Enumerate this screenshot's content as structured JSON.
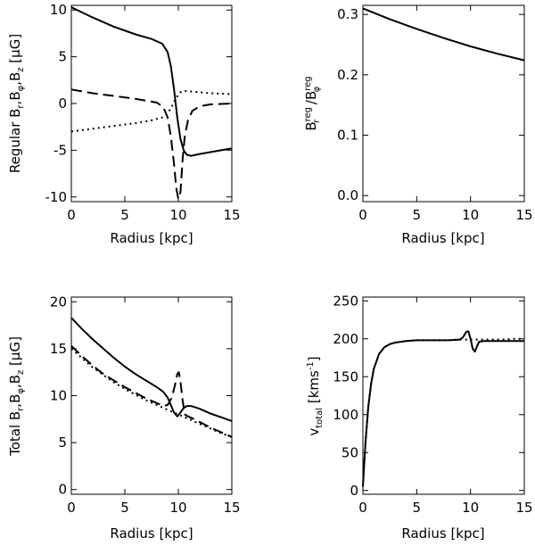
{
  "chart_data": [
    {
      "type": "line",
      "id": "regular-fields",
      "xlabel": "Radius [kpc]",
      "ylabel": "Regular B_r,B_φ,B_z [μG]",
      "xlim": [
        0,
        15
      ],
      "ylim": [
        -10.5,
        10.5
      ],
      "xticks": [
        0,
        5,
        10,
        15
      ],
      "yticks": [
        -10,
        -5,
        0,
        5,
        10
      ],
      "series": [
        {
          "name": "B_phi",
          "style": "solid",
          "x": [
            0,
            2,
            4,
            6,
            7.5,
            8.5,
            9.0,
            9.3,
            9.6,
            9.9,
            10.2,
            10.5,
            10.8,
            11.2,
            11.6,
            12,
            13,
            14,
            15
          ],
          "y": [
            10.3,
            9.2,
            8.2,
            7.4,
            6.9,
            6.4,
            5.5,
            4.0,
            1.5,
            -1.5,
            -3.8,
            -5.0,
            -5.5,
            -5.6,
            -5.5,
            -5.4,
            -5.2,
            -5.0,
            -4.8
          ]
        },
        {
          "name": "B_r",
          "style": "dashed",
          "x": [
            0,
            2,
            4,
            6,
            7,
            8,
            8.6,
            9.0,
            9.3,
            9.6,
            9.8,
            10.0,
            10.2,
            10.4,
            10.6,
            10.9,
            11.3,
            12,
            13,
            15
          ],
          "y": [
            1.5,
            1.1,
            0.8,
            0.5,
            0.3,
            0.1,
            -0.4,
            -1.5,
            -3.5,
            -6.5,
            -9.0,
            -10.2,
            -9.5,
            -6.0,
            -3.5,
            -1.8,
            -0.8,
            -0.3,
            -0.1,
            0.0
          ]
        },
        {
          "name": "B_z",
          "style": "dotted",
          "x": [
            0,
            2,
            4,
            6,
            7.5,
            8.5,
            9.0,
            9.4,
            9.8,
            10.2,
            10.5,
            11,
            12,
            13,
            14,
            15
          ],
          "y": [
            -3.0,
            -2.7,
            -2.4,
            -2.1,
            -1.8,
            -1.5,
            -1.1,
            -0.3,
            0.6,
            1.2,
            1.35,
            1.3,
            1.2,
            1.1,
            1.05,
            1.0
          ]
        }
      ]
    },
    {
      "type": "line",
      "id": "pitch-ratio",
      "xlabel": "Radius [kpc]",
      "ylabel": "B_r^reg / B_φ^reg",
      "xlim": [
        0,
        15
      ],
      "ylim": [
        -0.01,
        0.315
      ],
      "xticks": [
        0,
        5,
        10,
        15
      ],
      "yticks": [
        0.0,
        0.1,
        0.2,
        0.3
      ],
      "ytick_labels": [
        "0.0",
        "0.1",
        "0.2",
        "0.3"
      ],
      "series": [
        {
          "name": "ratio",
          "style": "solid",
          "x": [
            0,
            2.5,
            5,
            7.5,
            10,
            12.5,
            15
          ],
          "y": [
            0.31,
            0.292,
            0.276,
            0.261,
            0.247,
            0.235,
            0.224
          ]
        }
      ]
    },
    {
      "type": "line",
      "id": "total-fields",
      "xlabel": "Radius [kpc]",
      "ylabel": "Total B_r,B_φ,B_z [μG]",
      "xlim": [
        0,
        15
      ],
      "ylim": [
        -0.5,
        20.5
      ],
      "xticks": [
        0,
        5,
        10,
        15
      ],
      "yticks": [
        0,
        5,
        10,
        15,
        20
      ],
      "series": [
        {
          "name": "total_phi",
          "style": "solid",
          "x": [
            0,
            1,
            2,
            3,
            4,
            5,
            6,
            7,
            8,
            8.6,
            9.0,
            9.3,
            9.6,
            9.9,
            10.2,
            10.5,
            10.8,
            11.2,
            12,
            13,
            14,
            15
          ],
          "y": [
            18.3,
            17.1,
            16.0,
            15.0,
            14.0,
            13.1,
            12.3,
            11.6,
            10.9,
            10.4,
            9.8,
            9.0,
            8.2,
            7.8,
            8.2,
            8.7,
            8.9,
            8.9,
            8.6,
            8.1,
            7.7,
            7.3
          ]
        },
        {
          "name": "total_r",
          "style": "dashed",
          "x": [
            0,
            1,
            2,
            3,
            4,
            5,
            6,
            7,
            8,
            8.6,
            9.0,
            9.4,
            9.7,
            9.9,
            10.05,
            10.2,
            10.4,
            10.6,
            10.9,
            11.3,
            12,
            13,
            14,
            15
          ],
          "y": [
            15.3,
            14.2,
            13.2,
            12.3,
            11.6,
            10.9,
            10.3,
            9.7,
            9.2,
            8.9,
            9.0,
            9.8,
            11.2,
            12.3,
            12.5,
            11.5,
            9.5,
            8.0,
            7.8,
            7.6,
            7.2,
            6.6,
            6.1,
            5.6
          ]
        },
        {
          "name": "total_z",
          "style": "dotted",
          "x": [
            0,
            1,
            2,
            3,
            4,
            5,
            6,
            7,
            8,
            9,
            10,
            11,
            12,
            13,
            14,
            15
          ],
          "y": [
            15.0,
            14.0,
            13.0,
            12.2,
            11.4,
            10.7,
            10.1,
            9.5,
            9.0,
            8.5,
            8.0,
            7.5,
            7.0,
            6.5,
            6.0,
            5.6
          ]
        }
      ]
    },
    {
      "type": "line",
      "id": "rotation-curve",
      "xlabel": "Radius [kpc]",
      "ylabel": "v_total [kms^-1]",
      "xlim": [
        0,
        15
      ],
      "ylim": [
        -5,
        255
      ],
      "xticks": [
        0,
        5,
        10,
        15
      ],
      "yticks": [
        0,
        50,
        100,
        150,
        200,
        250
      ],
      "series": [
        {
          "name": "v_total",
          "style": "solid",
          "x": [
            0,
            0.1,
            0.25,
            0.5,
            0.75,
            1.0,
            1.5,
            2.0,
            2.5,
            3,
            4,
            5,
            6,
            7,
            8,
            9,
            9.3,
            9.6,
            9.8,
            10.0,
            10.2,
            10.4,
            10.6,
            10.8,
            11.2,
            12,
            13,
            14,
            15
          ],
          "y": [
            5,
            30,
            65,
            110,
            140,
            160,
            180,
            189,
            193,
            195,
            197,
            198,
            198,
            198,
            198,
            199,
            202,
            209,
            210,
            200,
            187,
            183,
            190,
            196,
            197,
            197,
            197,
            197,
            197
          ]
        },
        {
          "name": "v_model",
          "style": "dotted",
          "x": [
            0,
            0.1,
            0.25,
            0.5,
            0.75,
            1.0,
            1.5,
            2.0,
            2.5,
            3,
            4,
            5,
            6,
            7,
            8,
            9,
            10,
            11,
            12,
            13,
            14,
            15
          ],
          "y": [
            5,
            30,
            65,
            110,
            140,
            160,
            180,
            189,
            193,
            195,
            197,
            198,
            198,
            198,
            198,
            199,
            199,
            199,
            199,
            199,
            200,
            200
          ]
        }
      ]
    }
  ]
}
